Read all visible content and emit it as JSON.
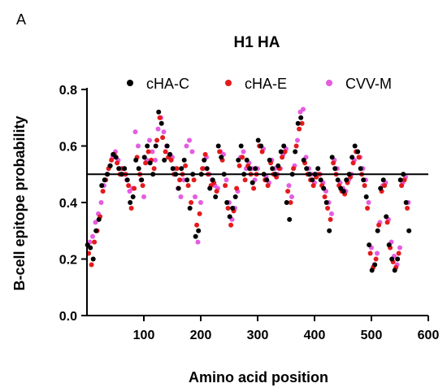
{
  "panel_label": "A",
  "chart_data": {
    "type": "scatter",
    "title": "H1 HA",
    "xlabel": "Amino acid position",
    "ylabel": "B-cell epitope probability",
    "xlim": [
      0,
      600
    ],
    "ylim": [
      0.0,
      0.8
    ],
    "xticks": [
      100,
      200,
      300,
      400,
      500,
      600
    ],
    "xtick_labels": [
      "100",
      "200",
      "300",
      "400",
      "500",
      "600"
    ],
    "yticks": [
      0.0,
      0.2,
      0.4,
      0.6,
      0.8
    ],
    "ytick_labels": [
      "0.0",
      "0.2",
      "0.4",
      "0.6",
      "0.8"
    ],
    "reference_line": 0.5,
    "grid": false,
    "legend_position": "top",
    "marker": "dot",
    "series": [
      {
        "name": "cHA-C",
        "color": "#000000",
        "x": [
          1,
          6,
          11,
          16,
          21,
          26,
          31,
          36,
          41,
          46,
          51,
          56,
          61,
          66,
          71,
          76,
          81,
          86,
          91,
          96,
          101,
          106,
          111,
          116,
          121,
          126,
          131,
          136,
          141,
          146,
          151,
          156,
          161,
          166,
          171,
          176,
          181,
          186,
          191,
          196,
          201,
          206,
          211,
          216,
          221,
          226,
          231,
          236,
          241,
          246,
          251,
          256,
          261,
          266,
          271,
          276,
          281,
          286,
          291,
          296,
          301,
          306,
          311,
          316,
          321,
          326,
          331,
          336,
          341,
          346,
          351,
          356,
          361,
          366,
          371,
          376,
          381,
          386,
          391,
          396,
          401,
          406,
          411,
          416,
          421,
          426,
          431,
          436,
          441,
          446,
          451,
          456,
          461,
          466,
          471,
          476,
          481,
          486,
          491,
          496,
          501,
          506,
          511,
          516,
          521,
          526,
          531,
          536,
          541,
          546,
          551,
          556,
          561,
          566
        ],
        "y": [
          0.25,
          0.24,
          0.2,
          0.3,
          0.34,
          0.46,
          0.48,
          0.5,
          0.53,
          0.57,
          0.56,
          0.52,
          0.5,
          0.52,
          0.48,
          0.4,
          0.42,
          0.55,
          0.52,
          0.48,
          0.56,
          0.6,
          0.54,
          0.5,
          0.6,
          0.72,
          0.68,
          0.55,
          0.6,
          0.57,
          0.52,
          0.5,
          0.45,
          0.52,
          0.55,
          0.48,
          0.38,
          0.5,
          0.28,
          0.3,
          0.5,
          0.55,
          0.52,
          0.45,
          0.48,
          0.42,
          0.6,
          0.56,
          0.5,
          0.4,
          0.35,
          0.38,
          0.42,
          0.55,
          0.6,
          0.5,
          0.55,
          0.52,
          0.47,
          0.52,
          0.62,
          0.6,
          0.5,
          0.48,
          0.55,
          0.52,
          0.5,
          0.53,
          0.58,
          0.6,
          0.4,
          0.34,
          0.5,
          0.58,
          0.68,
          0.7,
          0.55,
          0.52,
          0.5,
          0.48,
          0.5,
          0.52,
          0.48,
          0.45,
          0.4,
          0.3,
          0.56,
          0.52,
          0.48,
          0.45,
          0.44,
          0.48,
          0.5,
          0.56,
          0.6,
          0.58,
          0.52,
          0.48,
          0.42,
          0.25,
          0.16,
          0.18,
          0.3,
          0.45,
          0.48,
          0.35,
          0.25,
          0.2,
          0.16,
          0.2,
          0.48,
          0.5,
          0.4,
          0.3
        ]
      },
      {
        "name": "cHA-E",
        "color": "#e41a1c",
        "x": [
          3,
          8,
          13,
          18,
          23,
          28,
          33,
          38,
          43,
          48,
          53,
          58,
          63,
          68,
          73,
          78,
          83,
          88,
          93,
          98,
          103,
          108,
          113,
          118,
          123,
          128,
          133,
          138,
          143,
          148,
          153,
          158,
          163,
          168,
          173,
          178,
          183,
          188,
          193,
          198,
          203,
          208,
          213,
          218,
          223,
          228,
          233,
          238,
          243,
          248,
          253,
          258,
          263,
          268,
          273,
          278,
          283,
          288,
          293,
          298,
          303,
          308,
          313,
          318,
          323,
          328,
          333,
          338,
          343,
          348,
          353,
          358,
          363,
          368,
          373,
          378,
          383,
          388,
          393,
          398,
          403,
          408,
          413,
          418,
          423,
          428,
          433,
          438,
          443,
          448,
          453,
          458,
          463,
          468,
          473,
          478,
          483,
          488,
          493,
          498,
          503,
          508,
          513,
          518,
          523,
          528,
          533,
          538,
          543,
          548,
          553,
          558,
          563
        ],
        "y": [
          0.22,
          0.18,
          0.26,
          0.3,
          0.35,
          0.44,
          0.48,
          0.52,
          0.55,
          0.57,
          0.54,
          0.5,
          0.52,
          0.5,
          0.46,
          0.38,
          0.45,
          0.56,
          0.5,
          0.46,
          0.54,
          0.58,
          0.55,
          0.52,
          0.62,
          0.7,
          0.63,
          0.58,
          0.56,
          0.55,
          0.5,
          0.52,
          0.48,
          0.5,
          0.53,
          0.46,
          0.4,
          0.48,
          0.32,
          0.36,
          0.52,
          0.57,
          0.5,
          0.46,
          0.47,
          0.44,
          0.58,
          0.55,
          0.46,
          0.38,
          0.32,
          0.37,
          0.45,
          0.53,
          0.56,
          0.48,
          0.53,
          0.5,
          0.45,
          0.5,
          0.6,
          0.58,
          0.48,
          0.46,
          0.54,
          0.5,
          0.49,
          0.52,
          0.56,
          0.58,
          0.44,
          0.4,
          0.52,
          0.6,
          0.66,
          0.68,
          0.54,
          0.5,
          0.48,
          0.46,
          0.49,
          0.5,
          0.46,
          0.42,
          0.38,
          0.34,
          0.54,
          0.5,
          0.46,
          0.44,
          0.43,
          0.47,
          0.49,
          0.54,
          0.58,
          0.56,
          0.5,
          0.46,
          0.38,
          0.22,
          0.17,
          0.2,
          0.32,
          0.44,
          0.46,
          0.33,
          0.24,
          0.19,
          0.17,
          0.22,
          0.46,
          0.48,
          0.38
        ]
      },
      {
        "name": "CVV-M",
        "color": "#e55ce0",
        "x": [
          5,
          10,
          15,
          20,
          25,
          30,
          35,
          40,
          45,
          50,
          55,
          60,
          65,
          70,
          75,
          80,
          85,
          90,
          95,
          100,
          105,
          110,
          115,
          120,
          125,
          130,
          135,
          140,
          145,
          150,
          155,
          160,
          165,
          170,
          175,
          180,
          185,
          190,
          195,
          200,
          205,
          210,
          215,
          220,
          225,
          230,
          235,
          240,
          245,
          250,
          255,
          260,
          265,
          270,
          275,
          280,
          285,
          290,
          295,
          300,
          305,
          310,
          315,
          320,
          325,
          330,
          335,
          340,
          345,
          350,
          355,
          360,
          365,
          370,
          375,
          380,
          385,
          390,
          395,
          400,
          405,
          410,
          415,
          420,
          425,
          430,
          435,
          440,
          445,
          450,
          455,
          460,
          465,
          470,
          475,
          480,
          485,
          490,
          495,
          500,
          505,
          510,
          515,
          520,
          525,
          530,
          535,
          540,
          545,
          550,
          555,
          560,
          565
        ],
        "y": [
          0.26,
          0.28,
          0.33,
          0.36,
          0.4,
          0.46,
          0.5,
          0.53,
          0.56,
          0.58,
          0.55,
          0.52,
          0.5,
          0.48,
          0.44,
          0.45,
          0.65,
          0.6,
          0.48,
          0.42,
          0.55,
          0.62,
          0.58,
          0.55,
          0.66,
          0.7,
          0.65,
          0.6,
          0.57,
          0.56,
          0.52,
          0.45,
          0.42,
          0.48,
          0.6,
          0.62,
          0.58,
          0.42,
          0.26,
          0.4,
          0.52,
          0.56,
          0.5,
          0.48,
          0.46,
          0.45,
          0.58,
          0.57,
          0.48,
          0.4,
          0.34,
          0.38,
          0.44,
          0.56,
          0.58,
          0.52,
          0.54,
          0.52,
          0.48,
          0.52,
          0.6,
          0.59,
          0.49,
          0.47,
          0.55,
          0.52,
          0.5,
          0.52,
          0.57,
          0.59,
          0.46,
          0.42,
          0.53,
          0.62,
          0.72,
          0.73,
          0.56,
          0.52,
          0.5,
          0.47,
          0.5,
          0.5,
          0.47,
          0.44,
          0.4,
          0.36,
          0.55,
          0.52,
          0.47,
          0.45,
          0.44,
          0.48,
          0.5,
          0.55,
          0.58,
          0.56,
          0.52,
          0.48,
          0.4,
          0.24,
          0.18,
          0.22,
          0.33,
          0.46,
          0.47,
          0.34,
          0.26,
          0.21,
          0.18,
          0.24,
          0.47,
          0.49,
          0.4
        ]
      }
    ]
  }
}
